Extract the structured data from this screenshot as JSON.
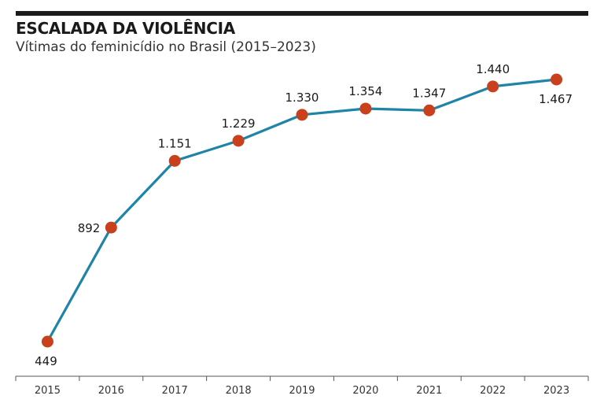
{
  "header": {
    "title": "ESCALADA DA VIOLÊNCIA",
    "subtitle": "Vítimas do feminicídio no Brasil (2015–2023)"
  },
  "colors": {
    "line": "#1f84a8",
    "marker": "#c8401c",
    "axis": "#555555",
    "rule": "#1a1a1a"
  },
  "chart_data": {
    "type": "line",
    "title": "ESCALADA DA VIOLÊNCIA",
    "subtitle": "Vítimas do feminicídio no Brasil (2015–2023)",
    "xlabel": "",
    "ylabel": "",
    "grid": false,
    "ylim": [
      400,
      1500
    ],
    "categories": [
      "2015",
      "2016",
      "2017",
      "2018",
      "2019",
      "2020",
      "2021",
      "2022",
      "2023"
    ],
    "series": [
      {
        "values": [
          449,
          892,
          1151,
          1229,
          1330,
          1354,
          1347,
          1440,
          1467
        ],
        "labels": [
          "449",
          "892",
          "1.151",
          "1.229",
          "1.330",
          "1.354",
          "1.347",
          "1.440",
          "1.467"
        ],
        "label_position": [
          "below",
          "left",
          "above",
          "above",
          "above",
          "above",
          "above",
          "above",
          "below"
        ]
      }
    ]
  }
}
